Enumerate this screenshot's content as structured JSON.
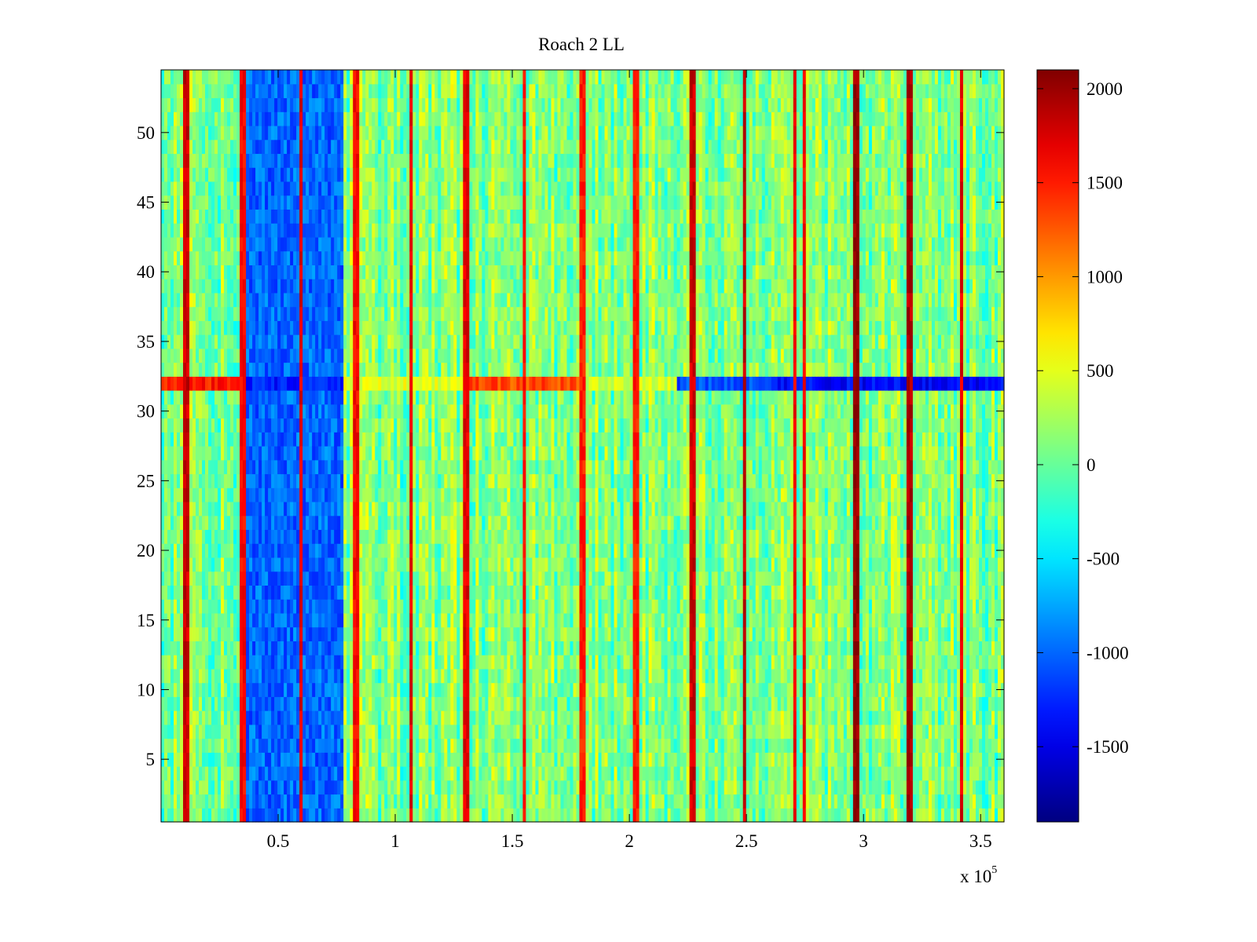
{
  "chart_data": {
    "type": "heatmap",
    "title": "Roach 2 LL",
    "xlabel": "",
    "ylabel": "",
    "x_range": [
      0,
      3.6
    ],
    "y_range": [
      0.5,
      54.5
    ],
    "rows": 54,
    "x_multiplier_label": "x 10",
    "x_multiplier_exponent": "5",
    "x_ticks": [
      0.5,
      1,
      1.5,
      2,
      2.5,
      3,
      3.5
    ],
    "x_tick_labels": [
      "0.5",
      "1",
      "1.5",
      "2",
      "2.5",
      "3",
      "3.5"
    ],
    "y_ticks": [
      5,
      10,
      15,
      20,
      25,
      30,
      35,
      40,
      45,
      50
    ],
    "y_tick_labels": [
      "5",
      "10",
      "15",
      "20",
      "25",
      "30",
      "35",
      "40",
      "45",
      "50"
    ],
    "colorbar": {
      "colormap": "jet",
      "range": [
        -1900,
        2100
      ],
      "ticks": [
        2000,
        1500,
        1000,
        500,
        0,
        -500,
        -1000,
        -1500
      ],
      "tick_labels": [
        "2000",
        "1500",
        "1000",
        "500",
        "0",
        "-500",
        "-1000",
        "-1500"
      ]
    },
    "base_level": 100,
    "noise_amplitude": 300,
    "features": {
      "hot_columns": [
        {
          "x": 0.11,
          "value": 1800
        },
        {
          "x": 0.35,
          "value": 1600
        },
        {
          "x": 0.6,
          "value": 1700
        },
        {
          "x": 0.83,
          "value": 1600
        },
        {
          "x": 1.07,
          "value": 1700
        },
        {
          "x": 1.3,
          "value": 1700
        },
        {
          "x": 1.55,
          "value": 1500
        },
        {
          "x": 1.8,
          "value": 1500
        },
        {
          "x": 2.03,
          "value": 1500
        },
        {
          "x": 2.27,
          "value": 1800
        },
        {
          "x": 2.49,
          "value": 1800
        },
        {
          "x": 2.71,
          "value": 1600
        },
        {
          "x": 2.75,
          "value": 1600
        },
        {
          "x": 2.97,
          "value": 2000
        },
        {
          "x": 3.2,
          "value": 1900
        },
        {
          "x": 3.42,
          "value": 1700
        }
      ],
      "cold_region": {
        "x_start": 0.35,
        "x_end": 0.78,
        "value": -1000
      },
      "row_32_profile": [
        {
          "x_start": 0,
          "x_end": 0.35,
          "value": 1500
        },
        {
          "x_start": 0.35,
          "x_end": 0.78,
          "value": -1300
        },
        {
          "x_start": 0.78,
          "x_end": 1.3,
          "value": 500
        },
        {
          "x_start": 1.3,
          "x_end": 1.8,
          "value": 1300
        },
        {
          "x_start": 1.8,
          "x_end": 2.2,
          "value": 400
        },
        {
          "x_start": 2.2,
          "x_end": 2.6,
          "value": -1100
        },
        {
          "x_start": 2.6,
          "x_end": 3.6,
          "value": -1400
        }
      ]
    }
  }
}
